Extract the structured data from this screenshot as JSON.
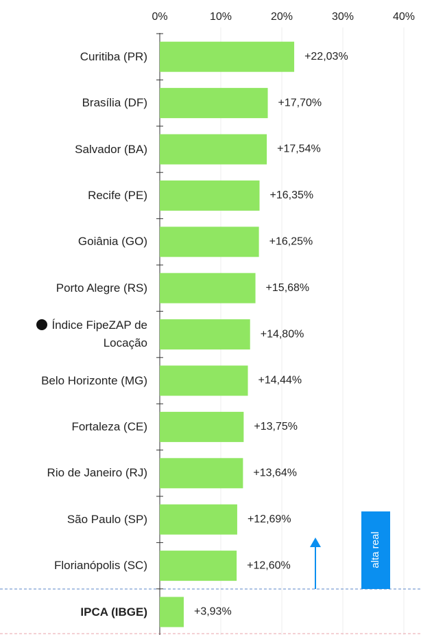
{
  "chart_data": {
    "type": "bar",
    "orientation": "horizontal",
    "categories": [
      "Curitiba (PR)",
      "Brasília (DF)",
      "Salvador (BA)",
      "Recife (PE)",
      "Goiânia (GO)",
      "Porto Alegre (RS)",
      "Índice FipeZAP de Locação",
      "Belo Horizonte (MG)",
      "Fortaleza (CE)",
      "Rio de Janeiro (RJ)",
      "São Paulo (SP)",
      "Florianópolis (SC)",
      "IPCA (IBGE)"
    ],
    "values": [
      22.03,
      17.7,
      17.54,
      16.35,
      16.25,
      15.68,
      14.8,
      14.44,
      13.75,
      13.64,
      12.69,
      12.6,
      3.93
    ],
    "value_labels": [
      "+22,03%",
      "+17,70%",
      "+17,54%",
      "+16,35%",
      "+16,25%",
      "+15,68%",
      "+14,80%",
      "+14,44%",
      "+13,75%",
      "+13,64%",
      "+12,69%",
      "+12,60%",
      "+3,93%"
    ],
    "color": "#90e662",
    "xlim": [
      0,
      40
    ],
    "xticks": [
      {
        "value": 0,
        "label": "0%"
      },
      {
        "value": 10,
        "label": "10%"
      },
      {
        "value": 20,
        "label": "20%"
      },
      {
        "value": 30,
        "label": "30%"
      },
      {
        "value": 40,
        "label": "40%"
      }
    ],
    "grid": true,
    "annotation": "alta real"
  }
}
